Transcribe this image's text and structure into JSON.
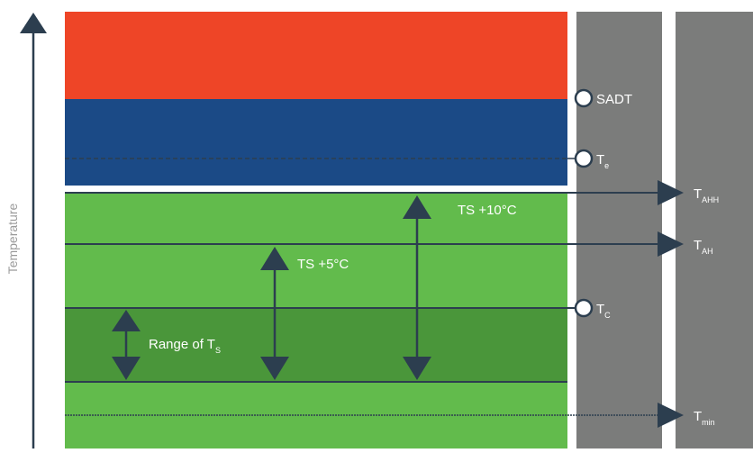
{
  "axis": {
    "title": "Temperature"
  },
  "colors": {
    "danger": "#ee4527",
    "warning": "#1b4a86",
    "safe": "#62bb4c",
    "storage_range": "#4a963a",
    "column": "#7b7c7b",
    "line": "#2c3e4f",
    "background": "#ffffff"
  },
  "markers": [
    {
      "id": "sadt",
      "text": "SADT",
      "sub": ""
    },
    {
      "id": "te",
      "text": "T",
      "sub": "e"
    },
    {
      "id": "tc",
      "text": "T",
      "sub": "C"
    }
  ],
  "limits": [
    {
      "id": "tahh",
      "text": "T",
      "sub": "AHH"
    },
    {
      "id": "tah",
      "text": "T",
      "sub": "AH"
    },
    {
      "id": "tmin",
      "text": "T",
      "sub": "min"
    }
  ],
  "arrows": {
    "range": {
      "text": "Range of T",
      "sub": "S"
    },
    "ts5": {
      "text": "TS +5°C"
    },
    "ts10": {
      "text": "TS +10°C"
    }
  }
}
